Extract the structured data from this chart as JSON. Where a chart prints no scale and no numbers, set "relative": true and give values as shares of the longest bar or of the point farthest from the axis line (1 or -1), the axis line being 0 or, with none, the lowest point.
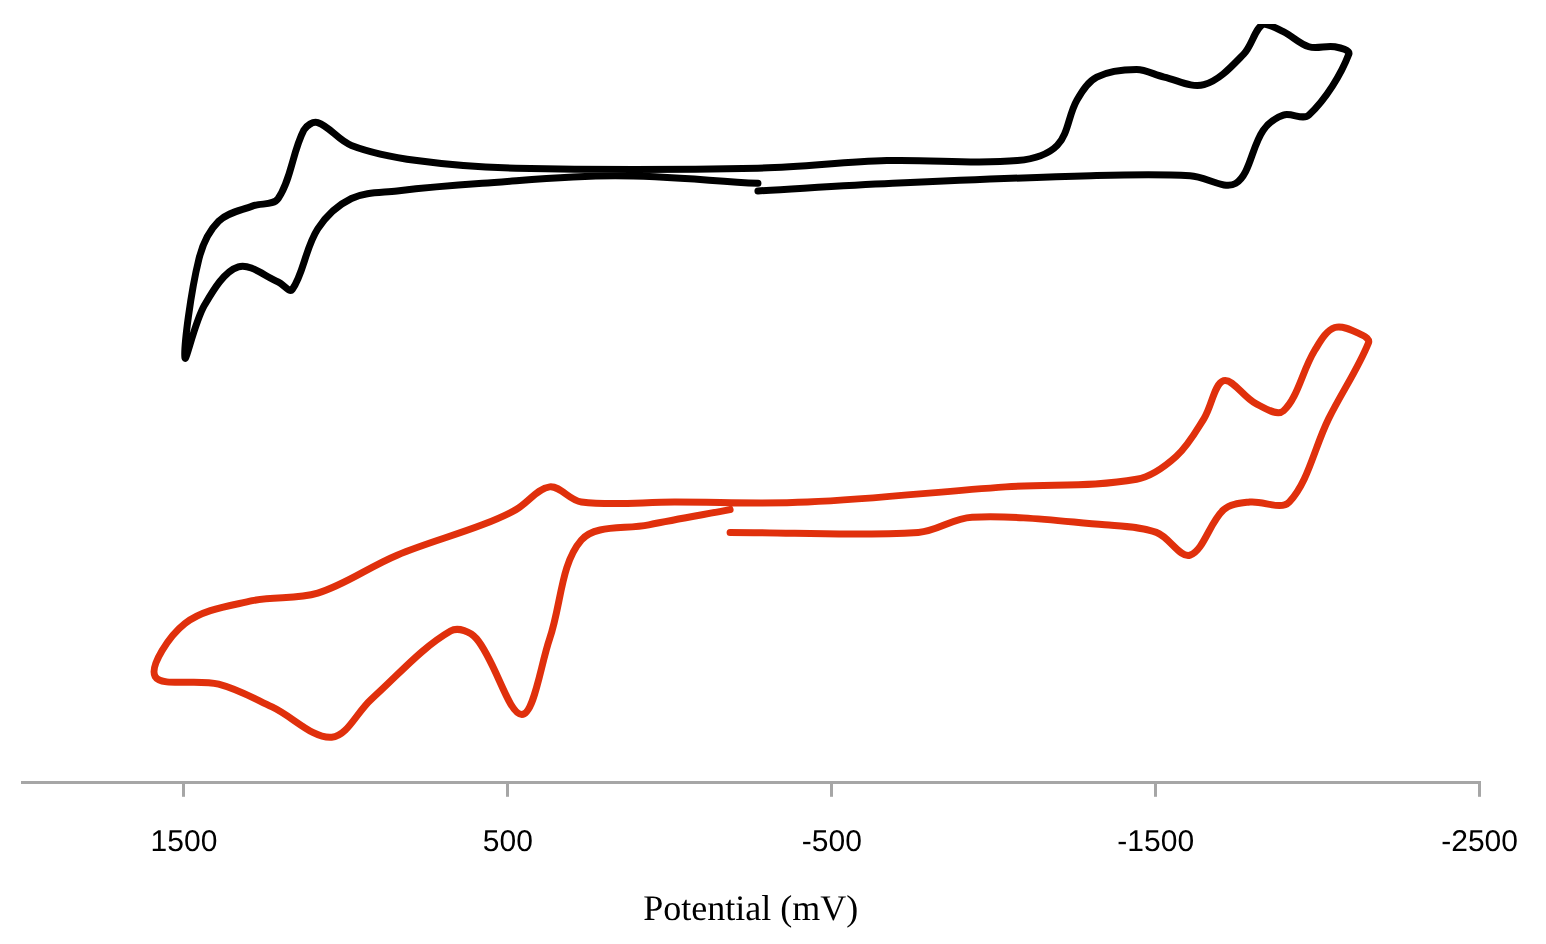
{
  "chart_data": {
    "type": "line",
    "xlabel": "Potential (mV)",
    "relative": true,
    "xlim": [
      2000,
      -2500
    ],
    "xticks": [
      1500,
      500,
      -500,
      -1500,
      -2500
    ],
    "grid": false,
    "legend": false,
    "marker": "none",
    "tick_labels": "x",
    "series": [
      {
        "color": "#000000",
        "x": [
          -272,
          -688,
          -1300,
          -1606,
          -1747,
          -1832,
          -1894,
          -1973,
          -2096,
          -2053,
          -1973,
          -1894,
          -1832,
          -1771,
          -1649,
          -1526,
          -1441,
          -1318,
          -1257,
          -1196,
          -1073,
          -670,
          -272,
          475,
          781,
          983,
          1087,
          1130,
          1209,
          1289,
          1393,
          1454,
          1497,
          1436,
          1332,
          1209,
          1166,
          1087,
          983,
          842,
          579,
          169,
          -272
        ],
        "values": [
          0.78,
          0.79,
          0.8,
          0.8,
          0.79,
          0.86,
          0.88,
          0.88,
          0.96,
          0.97,
          0.97,
          0.99,
          1,
          0.96,
          0.92,
          0.93,
          0.94,
          0.93,
          0.9,
          0.84,
          0.82,
          0.82,
          0.81,
          0.81,
          0.82,
          0.84,
          0.87,
          0.86,
          0.77,
          0.76,
          0.74,
          0.69,
          0.56,
          0.63,
          0.68,
          0.66,
          0.65,
          0.73,
          0.77,
          0.78,
          0.79,
          0.8,
          0.79
        ]
      },
      {
        "color": "#e0300c",
        "x": [
          -186,
          -767,
          -933,
          -1343,
          -1502,
          -1606,
          -1710,
          -1790,
          -1912,
          -2034,
          -2157,
          -2138,
          -2053,
          -1991,
          -1894,
          -1808,
          -1710,
          -1649,
          -1563,
          -1441,
          -1037,
          -425,
          -15,
          273,
          371,
          475,
          579,
          842,
          1087,
          1289,
          1497,
          1589,
          1393,
          1228,
          1044,
          922,
          677,
          597,
          457,
          371,
          273,
          65,
          -186
        ],
        "values": [
          0.33,
          0.33,
          0.35,
          0.34,
          0.33,
          0.3,
          0.36,
          0.37,
          0.37,
          0.48,
          0.58,
          0.59,
          0.6,
          0.57,
          0.49,
          0.5,
          0.53,
          0.48,
          0.43,
          0.4,
          0.39,
          0.37,
          0.37,
          0.37,
          0.39,
          0.36,
          0.34,
          0.3,
          0.25,
          0.24,
          0.21,
          0.14,
          0.13,
          0.1,
          0.06,
          0.11,
          0.2,
          0.19,
          0.09,
          0.19,
          0.32,
          0.34,
          0.36
        ]
      }
    ]
  }
}
